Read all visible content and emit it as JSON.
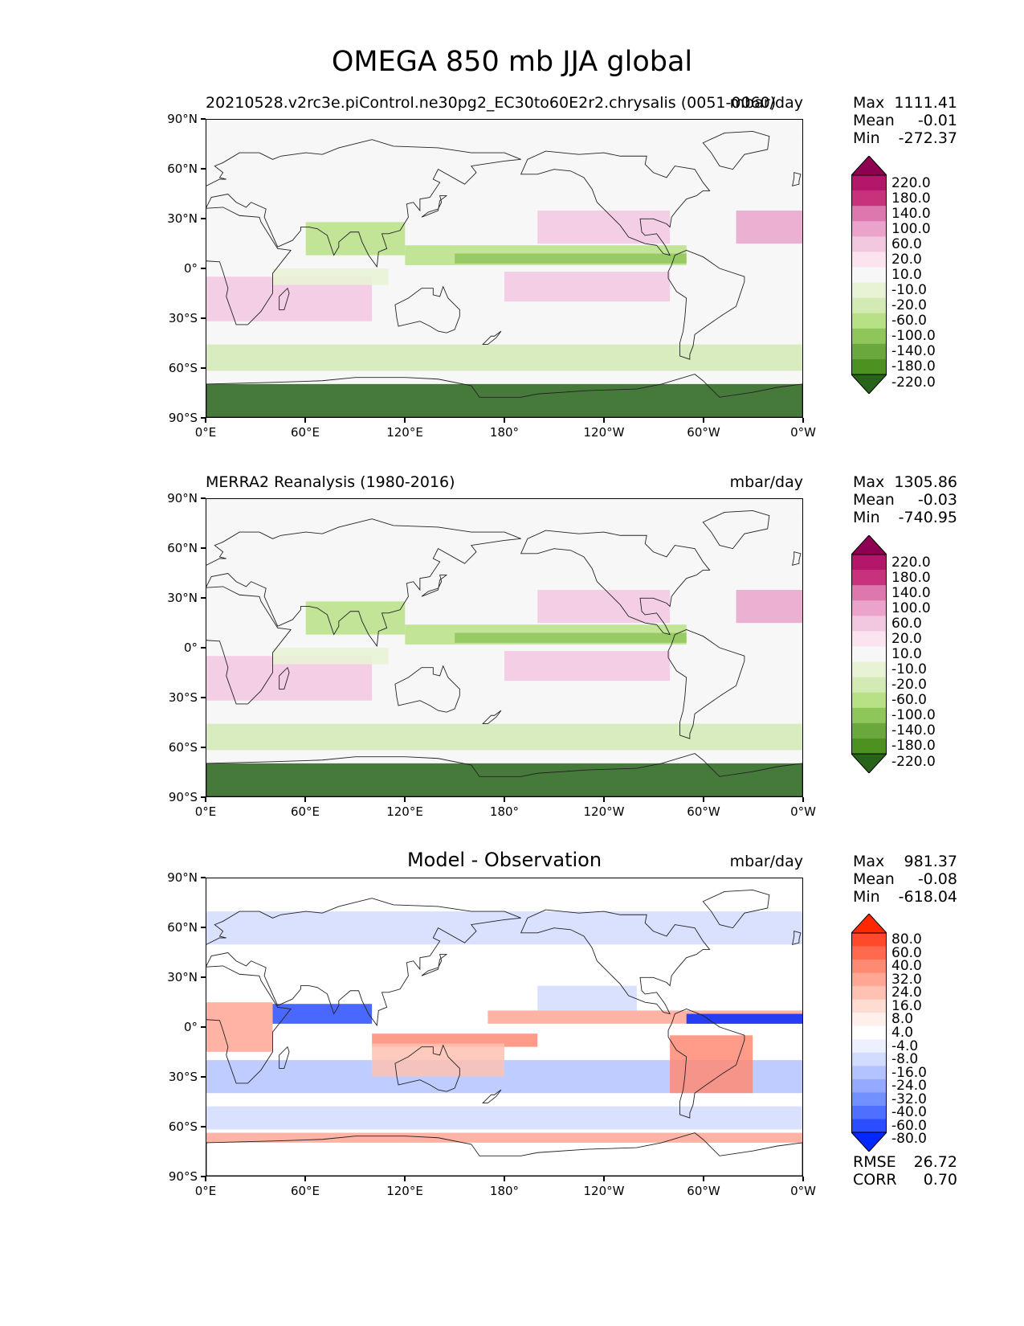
{
  "figure": {
    "title": "OMEGA 850 mb JJA global",
    "lat_labels": [
      "90°N",
      "60°N",
      "30°N",
      "0°",
      "30°S",
      "60°S",
      "90°S"
    ],
    "lon_labels": [
      "0°E",
      "60°E",
      "120°E",
      "180°",
      "120°W",
      "60°W",
      "0°W"
    ]
  },
  "panels": [
    {
      "left_title": "20210528.v2rc3e.piControl.ne30pg2_EC30to60E2r2.chrysalis (0051-0060)",
      "center_title": "",
      "units": "mbar/day",
      "stats": {
        "max_label": "Max",
        "max": "1111.41",
        "mean_label": "Mean",
        "mean": "-0.01",
        "min_label": "Min",
        "min": "-272.37"
      },
      "colorbar": {
        "levels": [
          "220.0",
          "180.0",
          "140.0",
          "100.0",
          "60.0",
          "20.0",
          "10.0",
          "-10.0",
          "-20.0",
          "-60.0",
          "-100.0",
          "-140.0",
          "-180.0",
          "-220.0"
        ],
        "colors": [
          "#8e0152",
          "#b4176a",
          "#c8327d",
          "#de77ae",
          "#eaa3cb",
          "#f2c7e0",
          "#fbe3ef",
          "#f7f7f7",
          "#e7f3d4",
          "#d4eab5",
          "#b8e186",
          "#8fc65a",
          "#6aa83e",
          "#4d9221",
          "#276419"
        ]
      }
    },
    {
      "left_title": "MERRA2 Reanalysis (1980-2016)",
      "center_title": "",
      "units": "mbar/day",
      "stats": {
        "max_label": "Max",
        "max": "1305.86",
        "mean_label": "Mean",
        "mean": "-0.03",
        "min_label": "Min",
        "min": "-740.95"
      },
      "colorbar": {
        "levels": [
          "220.0",
          "180.0",
          "140.0",
          "100.0",
          "60.0",
          "20.0",
          "10.0",
          "-10.0",
          "-20.0",
          "-60.0",
          "-100.0",
          "-140.0",
          "-180.0",
          "-220.0"
        ],
        "colors": [
          "#8e0152",
          "#b4176a",
          "#c8327d",
          "#de77ae",
          "#eaa3cb",
          "#f2c7e0",
          "#fbe3ef",
          "#f7f7f7",
          "#e7f3d4",
          "#d4eab5",
          "#b8e186",
          "#8fc65a",
          "#6aa83e",
          "#4d9221",
          "#276419"
        ]
      }
    },
    {
      "left_title": "",
      "center_title": "Model - Observation",
      "units": "mbar/day",
      "stats": {
        "max_label": "Max",
        "max": "981.37",
        "mean_label": "Mean",
        "mean": "-0.08",
        "min_label": "Min",
        "min": "-618.04"
      },
      "extra_stats": {
        "rmse_label": "RMSE",
        "rmse": "26.72",
        "corr_label": "CORR",
        "corr": "0.70"
      },
      "colorbar": {
        "levels": [
          "80.0",
          "60.0",
          "40.0",
          "32.0",
          "24.0",
          "16.0",
          "8.0",
          "4.0",
          "-4.0",
          "-8.0",
          "-16.0",
          "-24.0",
          "-32.0",
          "-40.0",
          "-60.0",
          "-80.0"
        ],
        "colors": [
          "#ff2800",
          "#ff4a2a",
          "#ff6a4f",
          "#ff8a73",
          "#ffa694",
          "#ffc1b3",
          "#ffdcd2",
          "#fff0ec",
          "#ffffff",
          "#ecf0ff",
          "#d2dcff",
          "#b3c3ff",
          "#94a9ff",
          "#7390ff",
          "#4f70ff",
          "#2a4dff",
          "#0028ff"
        ]
      }
    }
  ]
}
